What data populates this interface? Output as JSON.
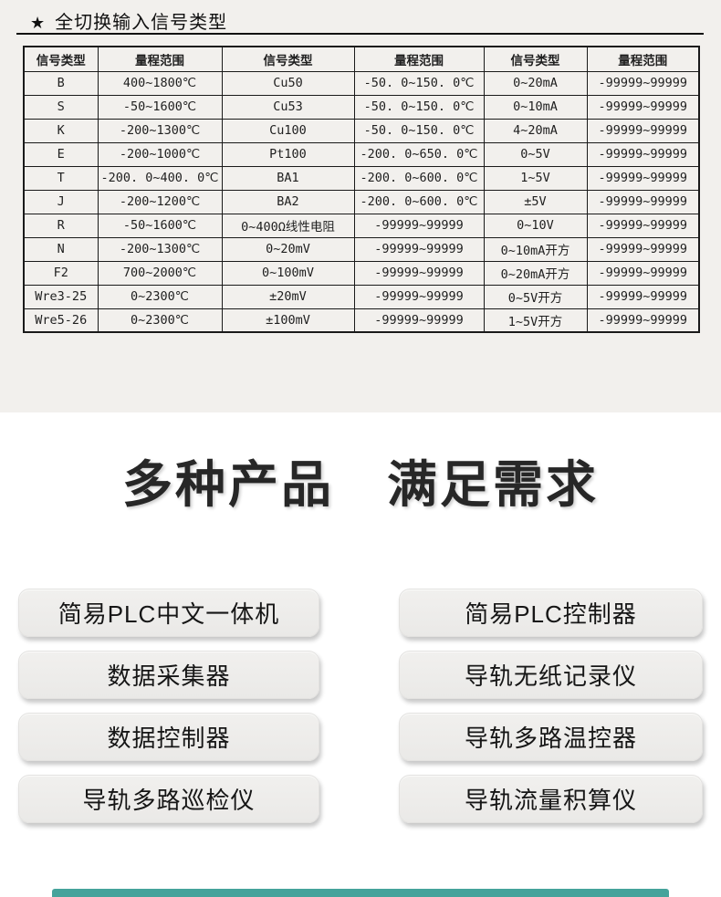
{
  "page": {
    "star": "★",
    "section_title": "全切换输入信号类型"
  },
  "table": {
    "headers": [
      "信号类型",
      "量程范围",
      "信号类型",
      "量程范围",
      "信号类型",
      "量程范围"
    ],
    "rows": [
      [
        "B",
        "400~1800℃",
        "Cu50",
        "-50. 0~150. 0℃",
        "0~20mA",
        "-99999~99999"
      ],
      [
        "S",
        "-50~1600℃",
        "Cu53",
        "-50. 0~150. 0℃",
        "0~10mA",
        "-99999~99999"
      ],
      [
        "K",
        "-200~1300℃",
        "Cu100",
        "-50. 0~150. 0℃",
        "4~20mA",
        "-99999~99999"
      ],
      [
        "E",
        "-200~1000℃",
        "Pt100",
        "-200. 0~650. 0℃",
        "0~5V",
        "-99999~99999"
      ],
      [
        "T",
        "-200. 0~400. 0℃",
        "BA1",
        "-200. 0~600. 0℃",
        "1~5V",
        "-99999~99999"
      ],
      [
        "J",
        "-200~1200℃",
        "BA2",
        "-200. 0~600. 0℃",
        "±5V",
        "-99999~99999"
      ],
      [
        "R",
        "-50~1600℃",
        "0~400Ω线性电阻",
        "-99999~99999",
        "0~10V",
        "-99999~99999"
      ],
      [
        "N",
        "-200~1300℃",
        "0~20mV",
        "-99999~99999",
        "0~10mA开方",
        "-99999~99999"
      ],
      [
        "F2",
        "700~2000℃",
        "0~100mV",
        "-99999~99999",
        "0~20mA开方",
        "-99999~99999"
      ],
      [
        "Wre3-25",
        "0~2300℃",
        "±20mV",
        "-99999~99999",
        "0~5V开方",
        "-99999~99999"
      ],
      [
        "Wre5-26",
        "0~2300℃",
        "±100mV",
        "-99999~99999",
        "1~5V开方",
        "-99999~99999"
      ]
    ]
  },
  "heading": {
    "text": "多种产品　满足需求"
  },
  "products": {
    "left": [
      "简易PLC中文一体机",
      "数据采集器",
      "数据控制器",
      "导轨多路巡检仪"
    ],
    "right": [
      "简易PLC控制器",
      "导轨无纸记录仪",
      "导轨多路温控器",
      "导轨流量积算仪"
    ]
  },
  "colors": {
    "accent_teal": "#45a39b",
    "section_background": "#f2f0ed",
    "button_background": "#ecebe9"
  }
}
